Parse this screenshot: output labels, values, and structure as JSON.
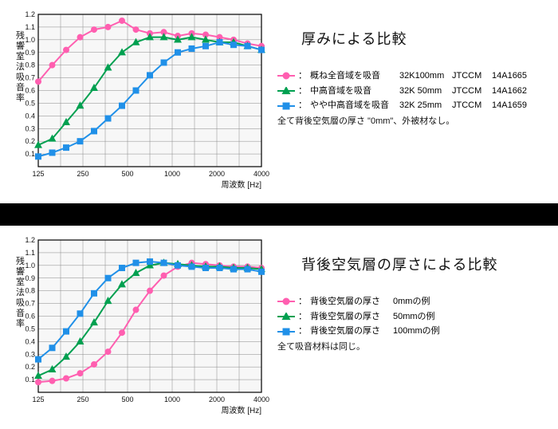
{
  "axis": {
    "xlabel": "周波数 [Hz]",
    "ylabel": "残響室法吸音率",
    "xticks": [
      "125",
      "",
      "250",
      "",
      "500",
      "",
      "1000",
      "",
      "2000",
      "",
      "4000"
    ],
    "yticks": [
      "0.1",
      "0.2",
      "0.3",
      "0.4",
      "0.5",
      "0.6",
      "0.7",
      "0.8",
      "0.9",
      "1.0",
      "1.1",
      "1.2"
    ],
    "ylim": [
      0,
      1.2
    ],
    "grid_color": "#888",
    "border_color": "#000",
    "ylabel_fontsize": 11,
    "xlabel_fontsize": 11
  },
  "series_colors": {
    "pink": "#ff5fb0",
    "green": "#00a050",
    "blue": "#2090e8"
  },
  "panel1": {
    "title": "厚みによる比較",
    "note": "全て背後空気層の厚さ \"0mm\"、外被材なし。",
    "legend": [
      {
        "marker": "circle",
        "color": "pink",
        "label": "概ね全音域を吸音",
        "spec": "32K100mm",
        "org": "JTCCM",
        "code": "14A1665"
      },
      {
        "marker": "triangle",
        "color": "green",
        "label": "中高音域を吸音",
        "spec": "32K 50mm",
        "org": "JTCCM",
        "code": "14A1662"
      },
      {
        "marker": "square",
        "color": "blue",
        "label": "やや中高音域を吸音",
        "spec": "32K 25mm",
        "org": "JTCCM",
        "code": "14A1659"
      }
    ],
    "series": {
      "pink": [
        0.67,
        0.8,
        0.92,
        1.02,
        1.08,
        1.1,
        1.15,
        1.08,
        1.05,
        1.06,
        1.03,
        1.05,
        1.04,
        1.02,
        1.0,
        0.97,
        0.95
      ],
      "green": [
        0.17,
        0.22,
        0.35,
        0.48,
        0.62,
        0.78,
        0.9,
        0.98,
        1.02,
        1.02,
        1.0,
        1.02,
        1.0,
        0.98,
        0.98,
        0.95,
        0.92
      ],
      "blue": [
        0.08,
        0.11,
        0.15,
        0.2,
        0.28,
        0.38,
        0.48,
        0.6,
        0.72,
        0.82,
        0.9,
        0.93,
        0.95,
        0.98,
        0.96,
        0.95,
        0.92
      ]
    }
  },
  "panel2": {
    "title": "背後空気層の厚さによる比較",
    "note": "全て吸音材料は同じ。",
    "legend": [
      {
        "marker": "circle",
        "color": "pink",
        "label": "背後空気層の厚さ",
        "spec": "0mmの例"
      },
      {
        "marker": "triangle",
        "color": "green",
        "label": "背後空気層の厚さ",
        "spec": "50mmの例"
      },
      {
        "marker": "square",
        "color": "blue",
        "label": "背後空気層の厚さ",
        "spec": "100mmの例"
      }
    ],
    "series": {
      "pink": [
        0.08,
        0.09,
        0.11,
        0.15,
        0.22,
        0.32,
        0.47,
        0.65,
        0.8,
        0.92,
        0.99,
        1.02,
        1.01,
        1.0,
        0.99,
        0.99,
        0.98
      ],
      "green": [
        0.13,
        0.18,
        0.28,
        0.4,
        0.55,
        0.72,
        0.85,
        0.94,
        1.0,
        1.02,
        1.01,
        1.0,
        0.99,
        0.99,
        0.98,
        0.98,
        0.97
      ],
      "blue": [
        0.26,
        0.35,
        0.48,
        0.62,
        0.78,
        0.9,
        0.98,
        1.02,
        1.03,
        1.02,
        1.0,
        0.99,
        0.98,
        0.98,
        0.97,
        0.97,
        0.95
      ]
    }
  }
}
